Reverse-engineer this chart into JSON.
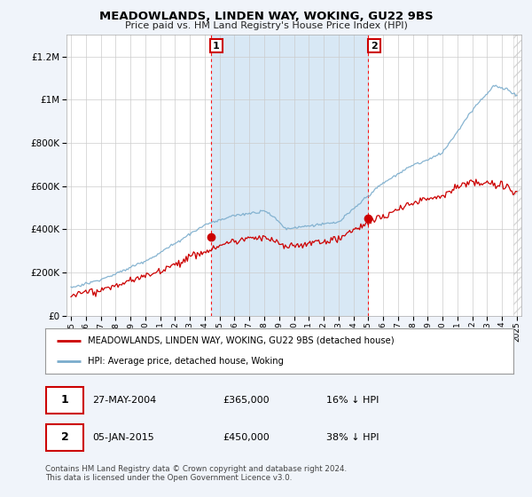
{
  "title": "MEADOWLANDS, LINDEN WAY, WOKING, GU22 9BS",
  "subtitle": "Price paid vs. HM Land Registry's House Price Index (HPI)",
  "legend_label_red": "MEADOWLANDS, LINDEN WAY, WOKING, GU22 9BS (detached house)",
  "legend_label_blue": "HPI: Average price, detached house, Woking",
  "annotation1_date": "27-MAY-2004",
  "annotation1_price": 365000,
  "annotation1_hpi": "16% ↓ HPI",
  "annotation2_date": "05-JAN-2015",
  "annotation2_price": 450000,
  "annotation2_hpi": "38% ↓ HPI",
  "footer": "Contains HM Land Registry data © Crown copyright and database right 2024.\nThis data is licensed under the Open Government Licence v3.0.",
  "ylim": [
    0,
    1300000
  ],
  "xlim_start": 1994.7,
  "xlim_end": 2025.3,
  "background_color": "#f0f4fa",
  "plot_bg_color": "#ffffff",
  "red_color": "#cc0000",
  "blue_color": "#7aaccc",
  "shade_color": "#d8e8f5",
  "sale1_year": 2004.4,
  "sale2_year": 2015.01
}
